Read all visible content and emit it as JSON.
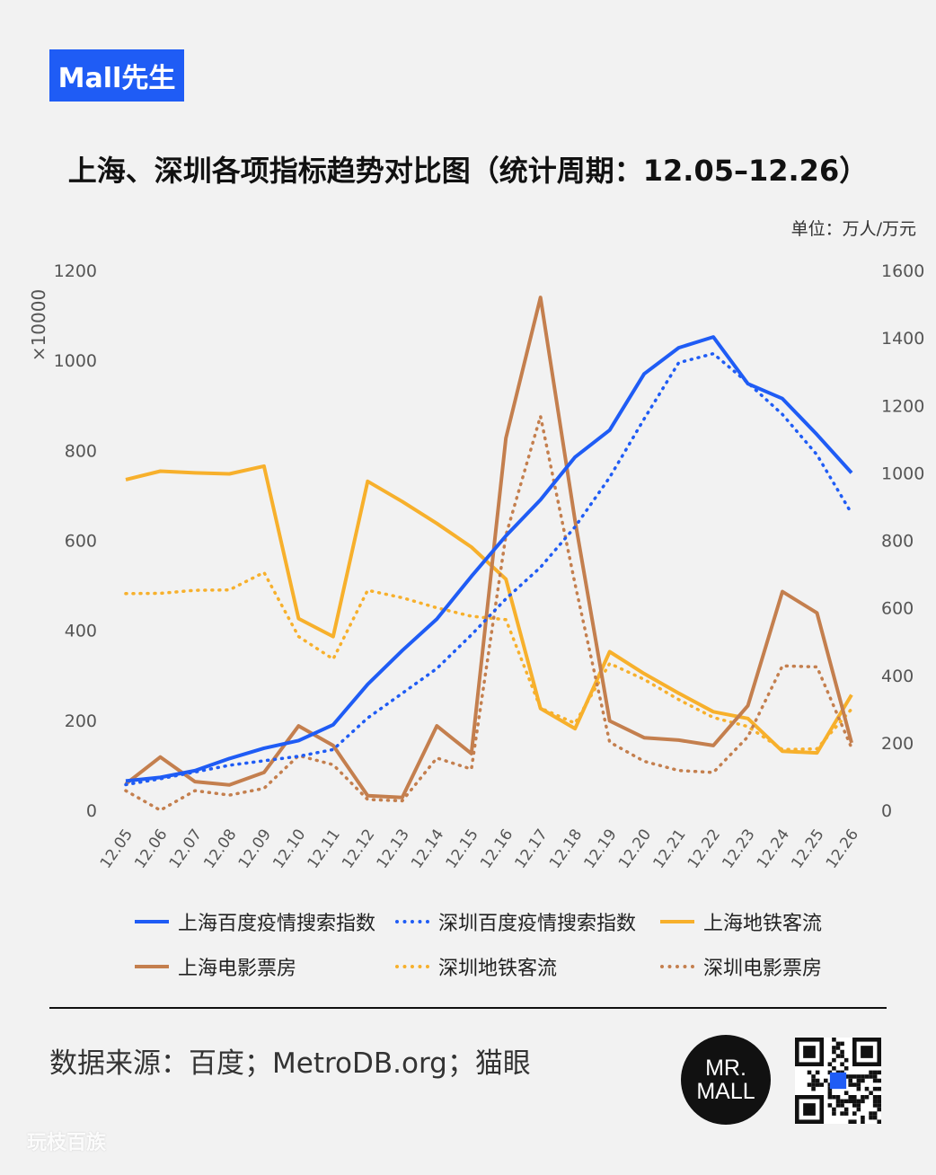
{
  "brand": {
    "label": "Mall先生"
  },
  "header": {
    "title": "上海、深圳各项指标趋势对比图（统计周期：12.05–12.26）",
    "unit": "单位：万人/万元"
  },
  "footer": {
    "source": "数据来源：百度；MetroDB.org；猫眼",
    "logo_text": "MR. MALL",
    "watermark": "玩枝百族"
  },
  "colors": {
    "blue": "#1f5cf5",
    "gold": "#f7b02c",
    "brown": "#c47f4e",
    "badge": "#1f5cf5"
  },
  "chart_data": {
    "type": "line",
    "categories": [
      "12.05",
      "12.06",
      "12.07",
      "12.08",
      "12.09",
      "12.10",
      "12.11",
      "12.12",
      "12.13",
      "12.14",
      "12.15",
      "12.16",
      "12.17",
      "12.18",
      "12.19",
      "12.20",
      "12.21",
      "12.22",
      "12.23",
      "12.24",
      "12.25",
      "12.26"
    ],
    "left_axis": {
      "label": "×10000",
      "ticks": [
        "0",
        "200",
        "400",
        "600",
        "800",
        "1000",
        "1200"
      ],
      "ylim": [
        0,
        1200
      ]
    },
    "right_axis": {
      "ticks": [
        "0",
        "200",
        "400",
        "600",
        "800",
        "1000",
        "1200",
        "1400",
        "1600"
      ],
      "ylim": [
        0,
        1600
      ]
    },
    "series": [
      {
        "name": "上海百度疫情搜索指数",
        "axis": "left",
        "color": "#1f5cf5",
        "dash": "solid",
        "values": [
          65,
          73,
          88,
          115,
          138,
          155,
          190,
          280,
          355,
          425,
          520,
          610,
          690,
          785,
          845,
          970,
          1028,
          1052,
          948,
          915,
          835,
          750
        ]
      },
      {
        "name": "深圳百度疫情搜索指数",
        "axis": "left",
        "color": "#1f5cf5",
        "dash": "dotted",
        "values": [
          57,
          70,
          85,
          100,
          110,
          120,
          135,
          205,
          260,
          315,
          390,
          470,
          540,
          630,
          740,
          870,
          995,
          1015,
          950,
          880,
          790,
          660
        ]
      },
      {
        "name": "上海地铁客流",
        "axis": "right",
        "color": "#f7b02c",
        "dash": "solid",
        "values": [
          980,
          1005,
          1000,
          997,
          1020,
          568,
          515,
          975,
          915,
          850,
          780,
          685,
          302,
          242,
          470,
          405,
          347,
          292,
          272,
          175,
          170,
          342
        ]
      },
      {
        "name": "上海电影票房",
        "axis": "right",
        "color": "#c47f4e",
        "dash": "solid",
        "values": [
          78,
          158,
          85,
          75,
          112,
          250,
          192,
          43,
          38,
          250,
          168,
          1103,
          1520,
          858,
          265,
          215,
          208,
          192,
          310,
          648,
          585,
          200
        ]
      },
      {
        "name": "深圳地铁客流",
        "axis": "right",
        "color": "#f7b02c",
        "dash": "dotted",
        "values": [
          642,
          643,
          652,
          653,
          705,
          515,
          448,
          652,
          630,
          600,
          575,
          565,
          303,
          258,
          435,
          388,
          328,
          275,
          248,
          180,
          182,
          300
        ]
      },
      {
        "name": "深圳电影票房",
        "axis": "right",
        "color": "#c47f4e",
        "dash": "dotted",
        "values": [
          58,
          0,
          58,
          45,
          65,
          162,
          135,
          32,
          28,
          155,
          122,
          815,
          1168,
          670,
          202,
          145,
          118,
          112,
          218,
          428,
          425,
          185
        ]
      }
    ]
  }
}
